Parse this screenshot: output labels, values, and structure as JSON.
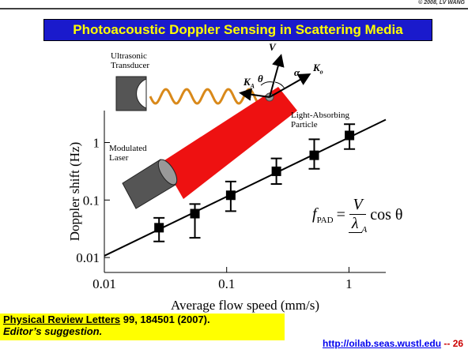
{
  "slide": {
    "copyright": "© 2008, LV WANG",
    "title": "Photoacoustic Doppler Sensing in Scattering Media",
    "annotations": {
      "transducer": "Ultrasonic Transducer",
      "particle": "Light-Absorbing Particle",
      "laser": "Modulated Laser",
      "v": "V",
      "ka": "K",
      "ka_sub": "A",
      "ko": "K",
      "ko_sub": "o",
      "theta": "θ",
      "alpha": "α"
    },
    "formula": {
      "f": "f",
      "f_sub": "PAD",
      "eq": "=",
      "num": "V",
      "den": "λ",
      "den_sub": "A",
      "tail": "cos θ"
    },
    "footer": {
      "journal": "Physical Review Letters",
      "citation": " 99, 184501 (2007).",
      "note": "Editor’s suggestion.",
      "url": "http://oilab.seas.wustl.edu",
      "page": " -- 26"
    }
  },
  "chart_data": {
    "type": "scatter",
    "x_label": "Average flow speed (mm/s)",
    "y_label": "Doppler shift (Hz)",
    "xscale": "log",
    "yscale": "log",
    "xlim": [
      0.01,
      2
    ],
    "ylim": [
      0.0055,
      3.6
    ],
    "xticks": [
      0.01,
      0.1,
      1
    ],
    "yticks": [
      0.01,
      0.1,
      1
    ],
    "series": [
      {
        "color": "#000000",
        "x": [
          0.028,
          0.055,
          0.108,
          0.255,
          0.52,
          1.01
        ],
        "values": [
          0.033,
          0.058,
          0.121,
          0.316,
          0.6,
          1.33
        ],
        "lower": [
          0.019,
          0.022,
          0.064,
          0.19,
          0.35,
          0.77
        ],
        "upper": [
          0.049,
          0.085,
          0.21,
          0.53,
          1.14,
          2.09
        ]
      },
      {
        "type": "line",
        "color": "#000000",
        "x": [
          0.01,
          2
        ],
        "values": [
          0.0107,
          2.5
        ]
      }
    ]
  }
}
